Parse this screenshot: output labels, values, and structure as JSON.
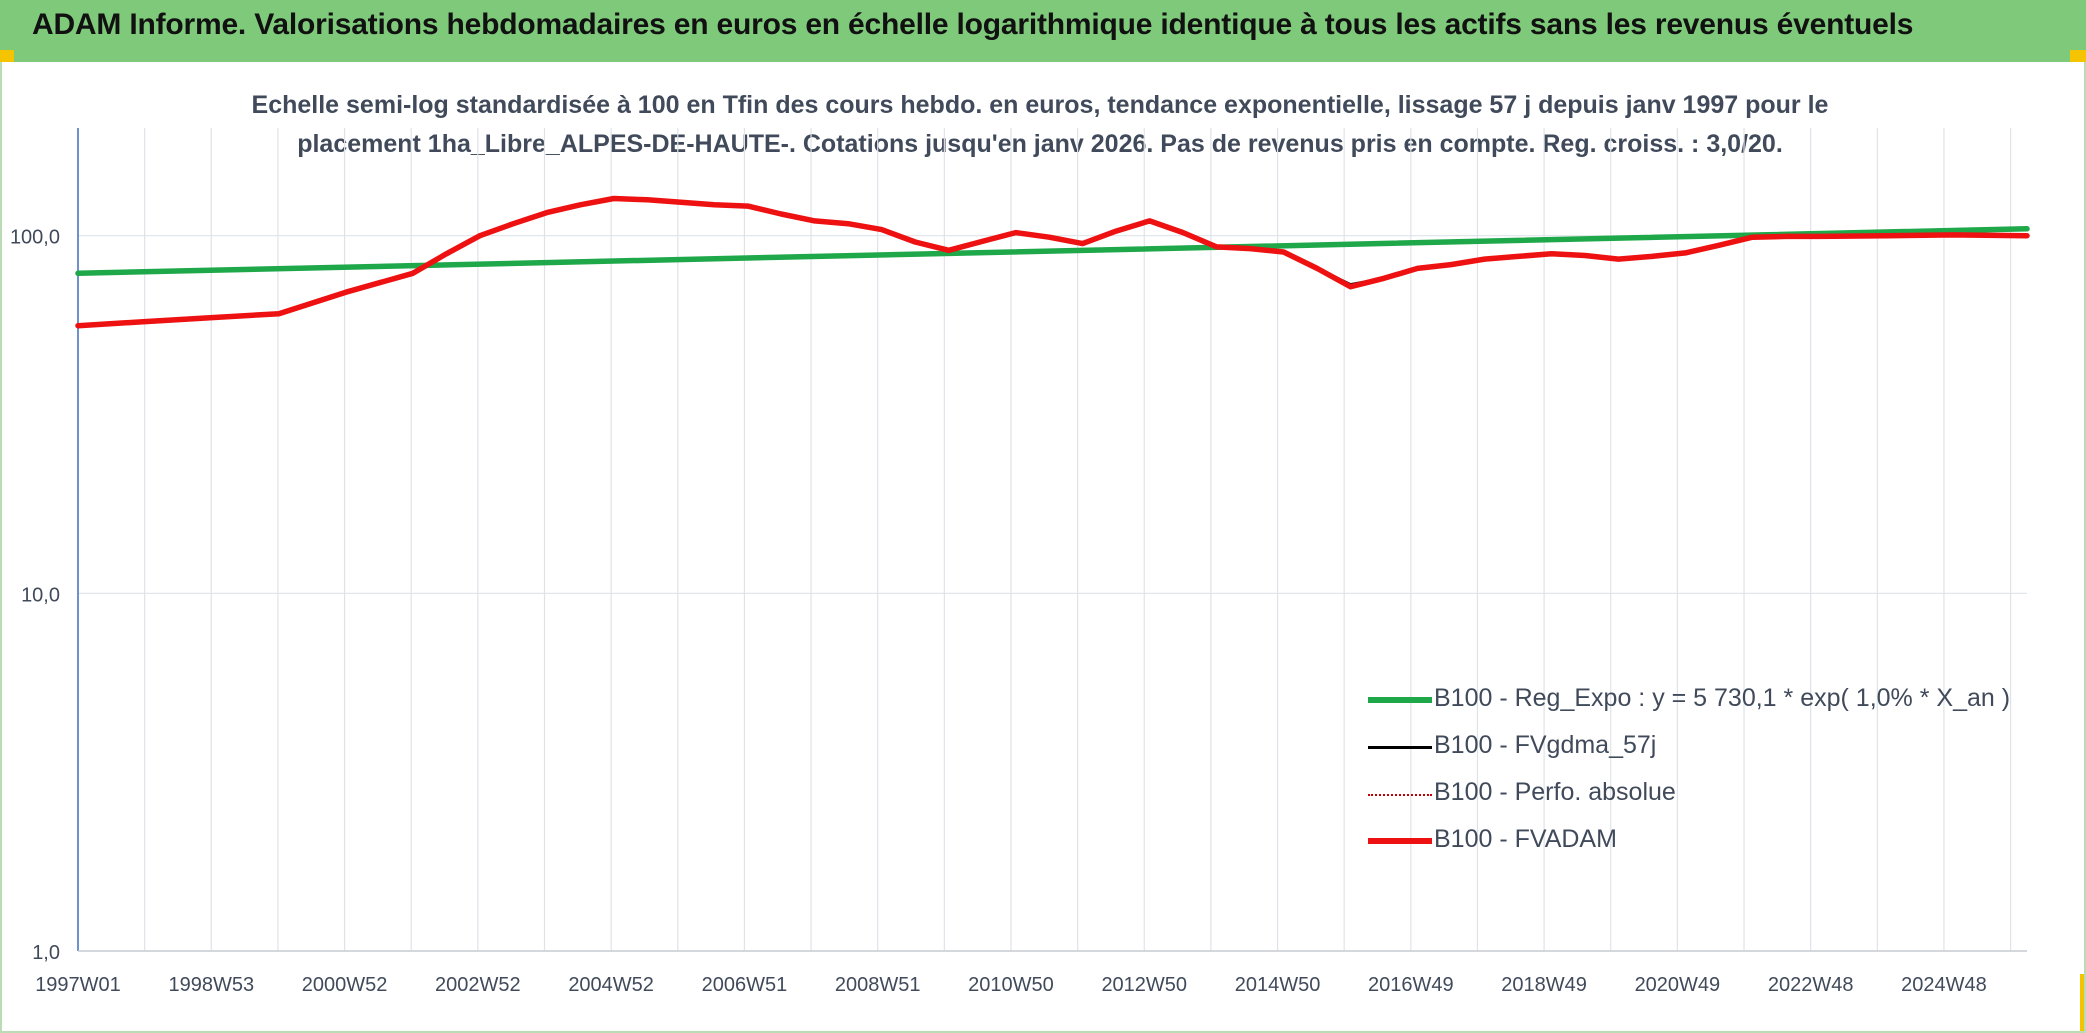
{
  "header": {
    "title": "ADAM Informe. Valorisations hebdomadaires en euros en échelle logarithmique identique à tous les actifs sans les revenus éventuels"
  },
  "colors": {
    "header_band": "#7fc97a",
    "accent_corner": "#f5c400",
    "grid": "#dfe3e8",
    "text": "#404a5a"
  },
  "chart_data": {
    "type": "line",
    "title_line1": "Echelle semi-log standardisée à 100 en Tfin des cours hebdo. en euros, tendance exponentielle, lissage 57 j depuis janv 1997 pour le",
    "title_line2": "placement 1ha_Libre_ALPES-DE-HAUTE-. Cotations jusqu'en janv 2026. Pas de revenus pris en compte. Reg. croiss. : 3,0/20.",
    "y_scale": "log",
    "ylim": [
      1,
      200
    ],
    "y_ticks": [
      1,
      10,
      100
    ],
    "y_tick_labels": [
      "1,0",
      "10,0",
      "100,0"
    ],
    "x_range": [
      1997.0,
      2026.1
    ],
    "x_ticks": [
      1997.0,
      1998.99,
      2000.98,
      2002.97,
      2004.96,
      2006.95,
      2008.94,
      2010.93,
      2012.92,
      2014.91,
      2016.9,
      2018.89,
      2020.88,
      2022.87,
      2024.86
    ],
    "x_tick_labels": [
      "1997W01",
      "1998W53",
      "2000W52",
      "2002W52",
      "2004W52",
      "2006W51",
      "2008W51",
      "2010W50",
      "2012W50",
      "2014W50",
      "2016W49",
      "2018W49",
      "2020W49",
      "2022W48",
      "2024W48"
    ],
    "grid": true,
    "legend_position": "bottom-right",
    "series": [
      {
        "name": "B100 - Reg_Expo : y = 5 730,1 * exp( 1,0% *  X_an )",
        "color": "#1ea84a",
        "style": "solid",
        "x": [
          1997.0,
          2026.1
        ],
        "y": [
          78.5,
          104.5
        ]
      },
      {
        "name": "B100 - FVgdma_57j",
        "color": "#000000",
        "style": "solid",
        "x": [
          1997.0,
          1998.0,
          1999.0,
          2000.0,
          2001.0,
          2002.0,
          2002.5,
          2003.0,
          2003.5,
          2004.0,
          2004.5,
          2005.0,
          2005.5,
          2006.0,
          2006.5,
          2007.0,
          2007.5,
          2008.0,
          2008.5,
          2009.0,
          2009.5,
          2010.0,
          2010.6,
          2011.0,
          2011.5,
          2012.0,
          2012.5,
          2013.0,
          2013.5,
          2014.0,
          2014.5,
          2015.0,
          2015.5,
          2016.0,
          2016.5,
          2017.0,
          2017.5,
          2018.0,
          2018.5,
          2019.0,
          2019.5,
          2020.0,
          2020.5,
          2021.0,
          2021.5,
          2022.0,
          2022.5,
          2023.0,
          2024.0,
          2025.0,
          2026.1
        ],
        "y": [
          56,
          57.5,
          59,
          60.5,
          69.5,
          78.5,
          89,
          100,
          108,
          116,
          122,
          127,
          126,
          124,
          122,
          121,
          115,
          110,
          108,
          104,
          96,
          91,
          97.5,
          102,
          99,
          95,
          103,
          110,
          102,
          93,
          92,
          90,
          81,
          73,
          76,
          81,
          83,
          86,
          87.5,
          89,
          88,
          86,
          87.5,
          89.5,
          94,
          99,
          99.5,
          99.5,
          100,
          100.5,
          100
        ]
      },
      {
        "name": "B100 - Perfo. absolue",
        "color": "#c00000",
        "style": "dotted",
        "x": [],
        "y": []
      },
      {
        "name": "B100 - FVADAM",
        "color": "#ee1111",
        "style": "solid",
        "x": [
          1997.0,
          1998.0,
          1999.0,
          2000.0,
          2001.0,
          2002.0,
          2002.5,
          2003.0,
          2003.5,
          2004.0,
          2004.5,
          2005.0,
          2005.5,
          2006.0,
          2006.5,
          2007.0,
          2007.5,
          2008.0,
          2008.5,
          2009.0,
          2009.5,
          2010.0,
          2010.6,
          2011.0,
          2011.5,
          2012.0,
          2012.5,
          2013.0,
          2013.5,
          2014.0,
          2014.5,
          2015.0,
          2015.5,
          2016.0,
          2016.5,
          2017.0,
          2017.5,
          2018.0,
          2018.5,
          2019.0,
          2019.5,
          2020.0,
          2020.5,
          2021.0,
          2021.5,
          2022.0,
          2022.5,
          2023.0,
          2024.0,
          2025.0,
          2026.1
        ],
        "y": [
          56,
          57.5,
          59,
          60.5,
          69.5,
          78.5,
          89,
          100,
          108,
          116,
          122,
          127,
          126,
          124,
          122,
          121,
          115,
          110,
          108,
          104,
          96,
          91,
          97.5,
          102,
          99,
          95,
          103,
          110,
          102,
          93,
          92,
          90,
          81,
          72,
          76,
          81,
          83,
          86,
          87.5,
          89,
          88,
          86,
          87.5,
          89.5,
          94,
          99,
          99.5,
          99.5,
          100,
          100.5,
          100
        ]
      }
    ]
  }
}
